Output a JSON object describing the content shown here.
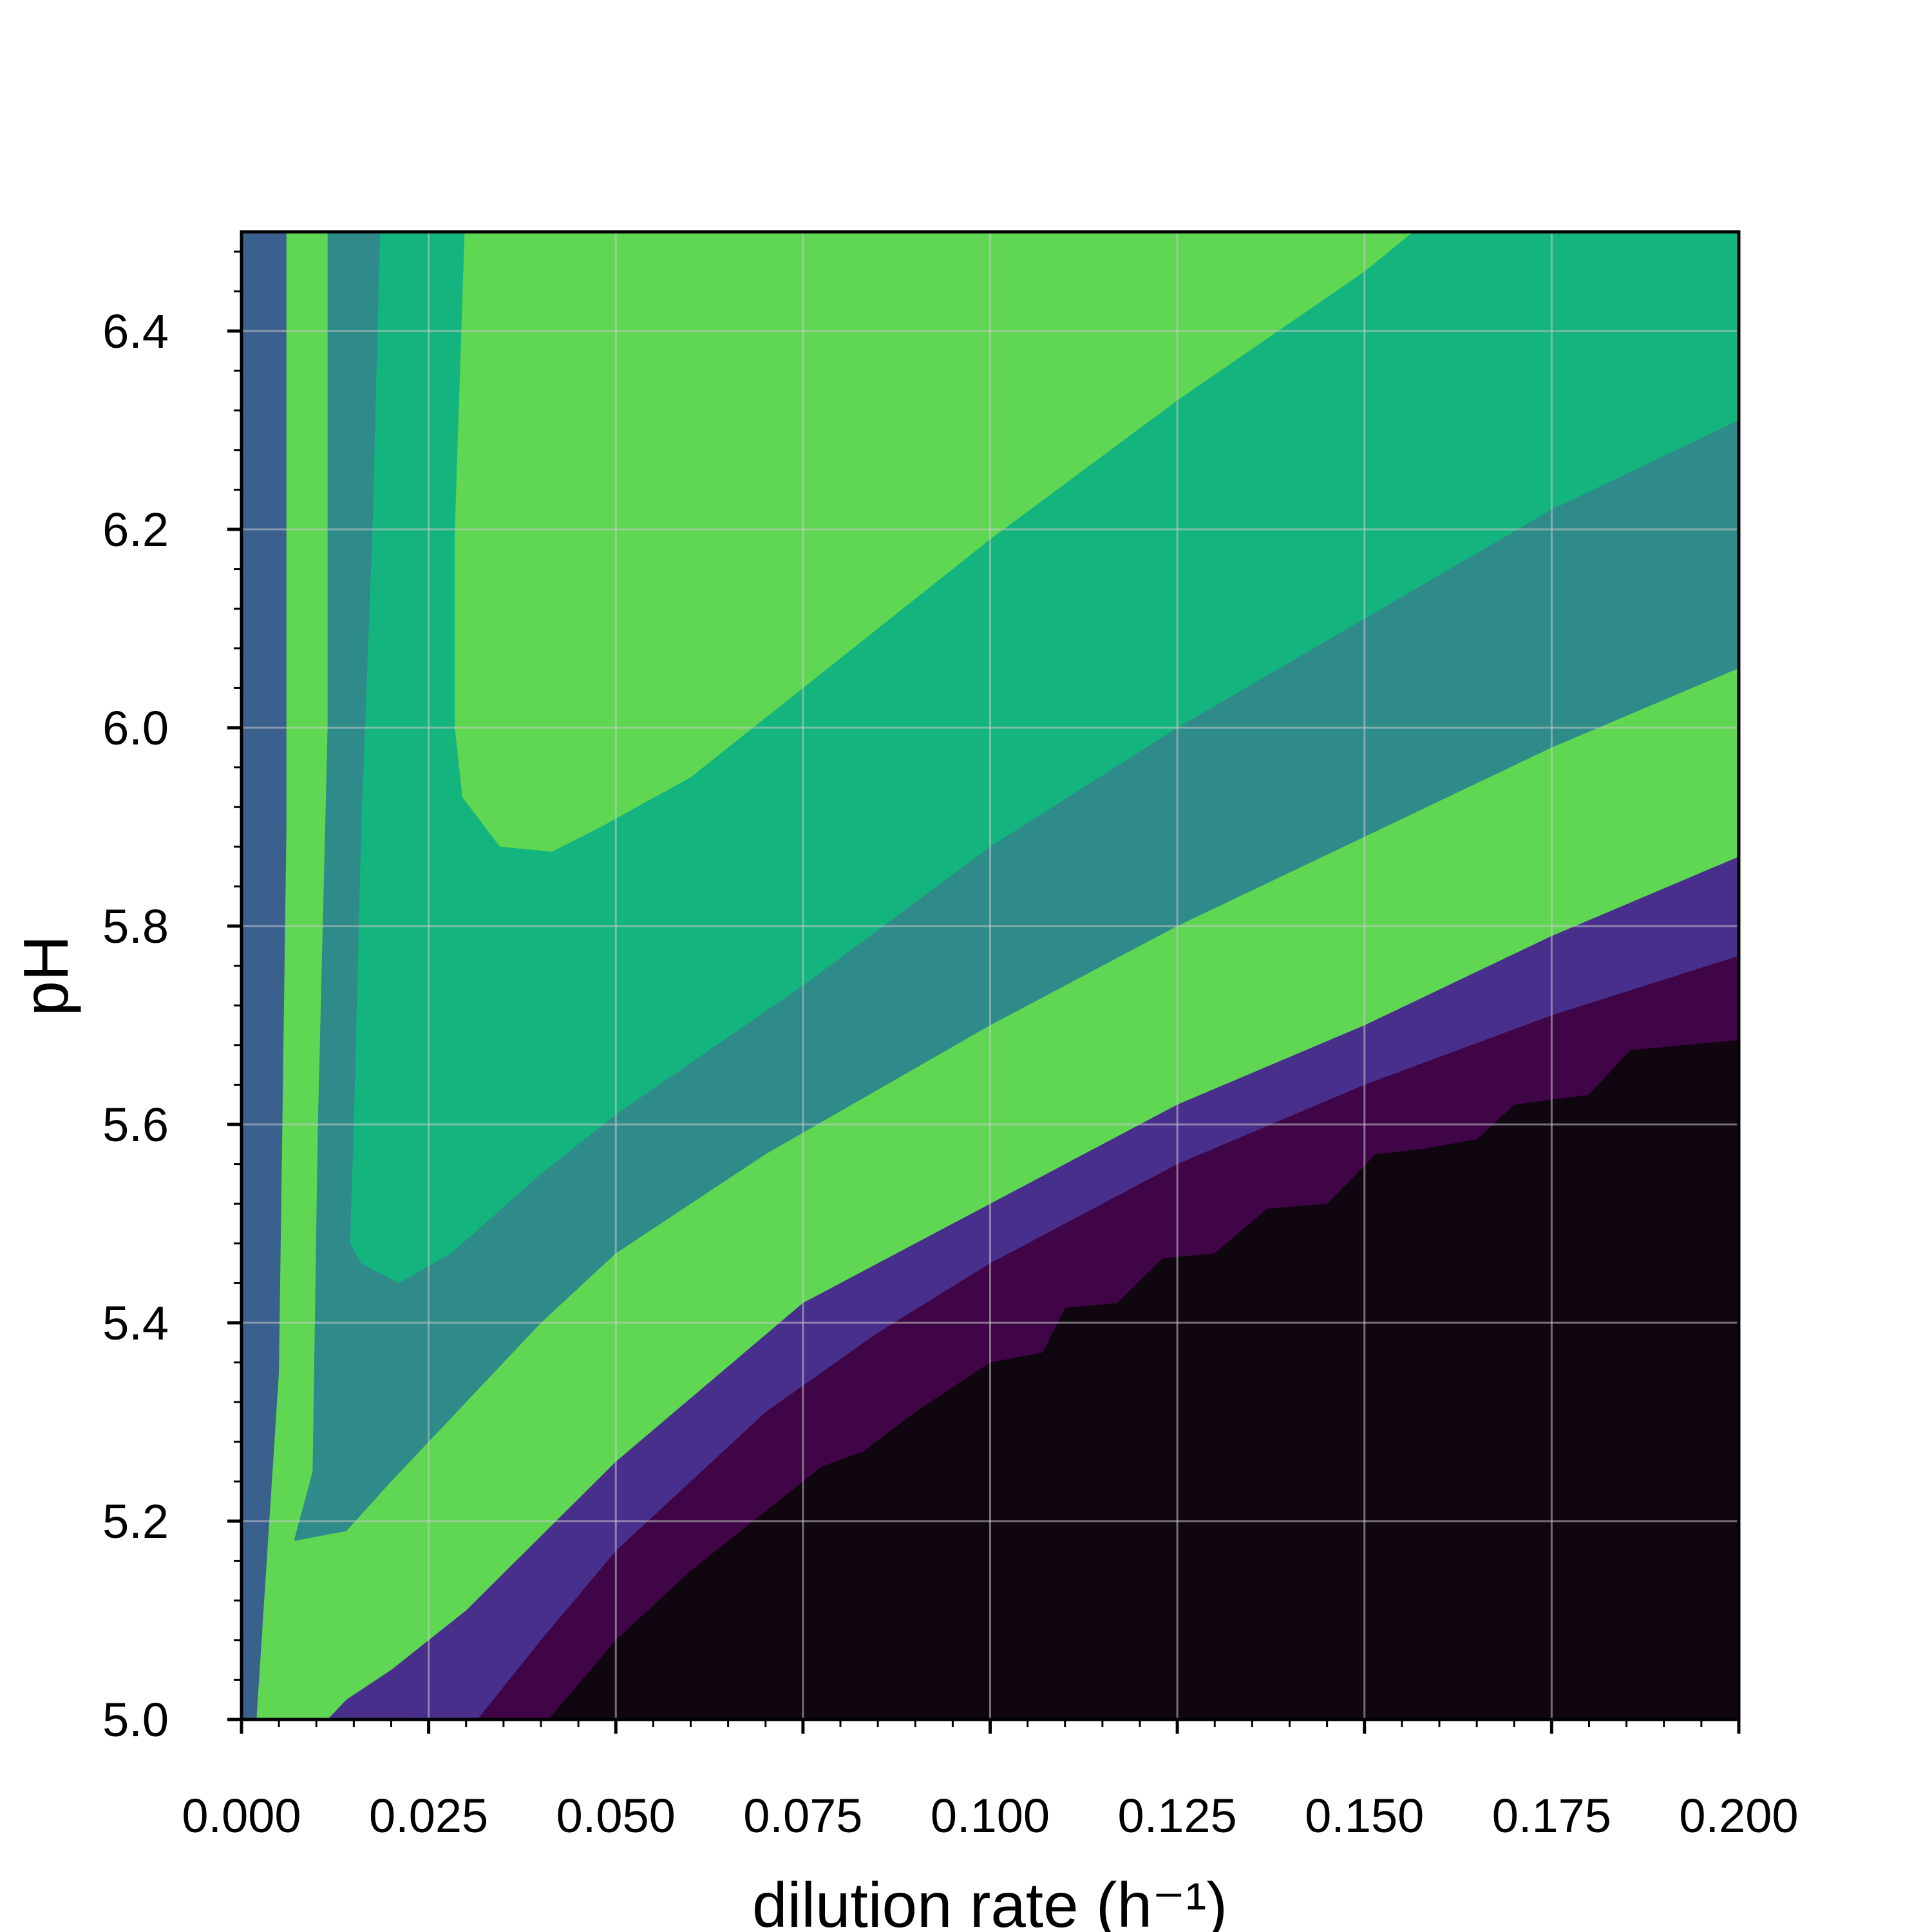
{
  "chart_data": {
    "type": "contour",
    "title": "",
    "xlabel": "dilution rate (h⁻¹)",
    "ylabel": "pH",
    "xlim": [
      0.0,
      0.2
    ],
    "ylim": [
      5.0,
      6.5
    ],
    "xticks": [
      "0.000",
      "0.025",
      "0.050",
      "0.075",
      "0.100",
      "0.125",
      "0.150",
      "0.175",
      "0.200"
    ],
    "yticks": [
      "5.0",
      "5.2",
      "5.4",
      "5.6",
      "5.8",
      "6.0",
      "6.2",
      "6.4"
    ],
    "grid": true,
    "colormap": "viridis",
    "levels": [
      {
        "color": "#10060f",
        "label": "level-0"
      },
      {
        "color": "#3f0546",
        "label": "level-1"
      },
      {
        "color": "#482f8c",
        "label": "level-2"
      },
      {
        "color": "#3a618e",
        "label": "level-3"
      },
      {
        "color": "#2e8b89",
        "label": "level-4"
      },
      {
        "color": "#14b47e",
        "label": "level-5"
      },
      {
        "color": "#5fd752",
        "label": "level-6"
      }
    ],
    "contour_boundaries": [
      {
        "level": 1,
        "points": [
          [
            0.0,
            6.5
          ],
          [
            0.0003,
            5.3
          ],
          [
            0.0004,
            5.0
          ],
          [
            0.0,
            5.0
          ]
        ]
      },
      {
        "level": 2,
        "points": [
          [
            0.002,
            6.5
          ],
          [
            0.0015,
            5.5
          ],
          [
            0.001,
            5.0
          ],
          [
            0.0,
            5.0
          ]
        ]
      },
      {
        "level": 3,
        "points": [
          [
            0.006,
            6.5
          ],
          [
            0.006,
            5.9
          ],
          [
            0.005,
            5.35
          ],
          [
            0.002,
            5.0
          ],
          [
            0.0,
            5.0
          ]
        ]
      },
      {
        "level": 4,
        "points": [
          [
            0.0115,
            6.5
          ],
          [
            0.0115,
            6.0
          ],
          [
            0.0102,
            5.6
          ],
          [
            0.0095,
            5.25
          ],
          [
            0.007,
            5.18
          ],
          [
            0.014,
            5.19
          ],
          [
            0.02,
            5.24
          ],
          [
            0.03,
            5.32
          ],
          [
            0.04,
            5.4
          ],
          [
            0.05,
            5.47
          ],
          [
            0.07,
            5.57
          ],
          [
            0.1,
            5.7
          ],
          [
            0.125,
            5.8
          ],
          [
            0.15,
            5.89
          ],
          [
            0.175,
            5.98
          ],
          [
            0.2,
            6.06
          ]
        ]
      },
      {
        "level": 5,
        "points": [
          [
            0.0185,
            6.5
          ],
          [
            0.0175,
            6.2
          ],
          [
            0.016,
            5.9
          ],
          [
            0.015,
            5.6
          ],
          [
            0.0145,
            5.48
          ],
          [
            0.016,
            5.46
          ],
          [
            0.021,
            5.44
          ],
          [
            0.028,
            5.47
          ],
          [
            0.04,
            5.55
          ],
          [
            0.05,
            5.61
          ],
          [
            0.075,
            5.74
          ],
          [
            0.1,
            5.88
          ],
          [
            0.125,
            6.0
          ],
          [
            0.15,
            6.11
          ],
          [
            0.175,
            6.22
          ],
          [
            0.2,
            6.31
          ]
        ]
      },
      {
        "level": 6,
        "points": [
          [
            0.0298,
            6.5
          ],
          [
            0.0285,
            6.2
          ],
          [
            0.0285,
            6.0
          ],
          [
            0.0295,
            5.93
          ],
          [
            0.0345,
            5.88
          ],
          [
            0.0415,
            5.875
          ],
          [
            0.048,
            5.9
          ],
          [
            0.06,
            5.95
          ],
          [
            0.075,
            6.04
          ],
          [
            0.1,
            6.19
          ],
          [
            0.125,
            6.33
          ],
          [
            0.15,
            6.46
          ],
          [
            0.1565,
            6.5
          ]
        ]
      }
    ],
    "lower_boundaries": [
      {
        "level": 2,
        "points": [
          [
            0.0115,
            5.0
          ],
          [
            0.014,
            5.02
          ],
          [
            0.02,
            5.05
          ],
          [
            0.03,
            5.11
          ],
          [
            0.05,
            5.26
          ],
          [
            0.075,
            5.42
          ],
          [
            0.1,
            5.52
          ],
          [
            0.125,
            5.62
          ],
          [
            0.15,
            5.7
          ],
          [
            0.175,
            5.79
          ],
          [
            0.2,
            5.87
          ]
        ]
      },
      {
        "level": 1,
        "points": [
          [
            0.0315,
            5.0
          ],
          [
            0.04,
            5.08
          ],
          [
            0.05,
            5.17
          ],
          [
            0.07,
            5.31
          ],
          [
            0.085,
            5.39
          ],
          [
            0.1,
            5.46
          ],
          [
            0.125,
            5.56
          ],
          [
            0.15,
            5.64
          ],
          [
            0.175,
            5.71
          ],
          [
            0.2,
            5.77
          ]
        ]
      },
      {
        "level": 0,
        "points": [
          [
            0.041,
            5.0
          ],
          [
            0.05,
            5.08
          ],
          [
            0.06,
            5.15
          ],
          [
            0.07,
            5.21
          ],
          [
            0.0775,
            5.255
          ],
          [
            0.083,
            5.27
          ],
          [
            0.09,
            5.31
          ],
          [
            0.1,
            5.36
          ],
          [
            0.107,
            5.37
          ],
          [
            0.11,
            5.415
          ],
          [
            0.117,
            5.42
          ],
          [
            0.123,
            5.465
          ],
          [
            0.13,
            5.47
          ],
          [
            0.137,
            5.515
          ],
          [
            0.145,
            5.52
          ],
          [
            0.1515,
            5.57
          ],
          [
            0.1575,
            5.575
          ],
          [
            0.165,
            5.585
          ],
          [
            0.17,
            5.62
          ],
          [
            0.18,
            5.63
          ],
          [
            0.1855,
            5.675
          ],
          [
            0.2,
            5.685
          ]
        ]
      }
    ]
  }
}
